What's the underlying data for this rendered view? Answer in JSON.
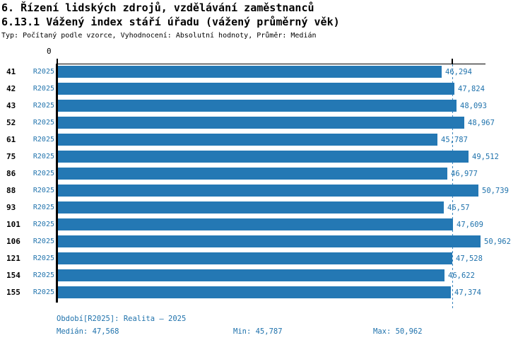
{
  "header": {
    "title1": "6. Řízení lidských zdrojů, vzdělávání zaměstnanců",
    "title2": "6.13.1 Vážený index stáří úřadu (vážený průměrný věk)",
    "meta": "Typ: Počítaný podle vzorce, Vyhodnocení: Absolutní hodnoty, Průměr: Medián"
  },
  "chart_data": {
    "type": "bar",
    "orientation": "horizontal",
    "title": "6.13.1 Vážený index stáří úřadu (vážený průměrný věk)",
    "categories": [
      "41",
      "42",
      "43",
      "52",
      "61",
      "75",
      "86",
      "88",
      "93",
      "101",
      "106",
      "121",
      "154",
      "155"
    ],
    "series": [
      {
        "name": "R2025",
        "values": [
          46.294,
          47.824,
          48.093,
          48.967,
          45.787,
          49.512,
          46.977,
          50.739,
          46.57,
          47.609,
          50.962,
          47.528,
          46.622,
          47.374
        ]
      }
    ],
    "value_labels": [
      "46,294",
      "47,824",
      "48,093",
      "48,967",
      "45,787",
      "49,512",
      "46,977",
      "50,739",
      "46,57",
      "47,609",
      "50,962",
      "47,528",
      "46,622",
      "47,374"
    ],
    "x_axis": {
      "origin_label": "0",
      "min": 0,
      "median_tick": 47.568
    },
    "median": 47.568,
    "stats": {
      "median": 47.568,
      "min": 45.787,
      "max": 50.962
    },
    "grid": false,
    "legend_position": "none"
  },
  "footer": {
    "period": "Období[R2025]: Realita – 2025",
    "median": "Medián: 47,568",
    "min": "Min: 45,787",
    "max": "Max: 50,962"
  },
  "colors": {
    "bar": "#2478b4",
    "blue_text": "#1f72ac",
    "axis": "#000000",
    "median_dash": "#3a85bd",
    "background": "#ffffff"
  }
}
